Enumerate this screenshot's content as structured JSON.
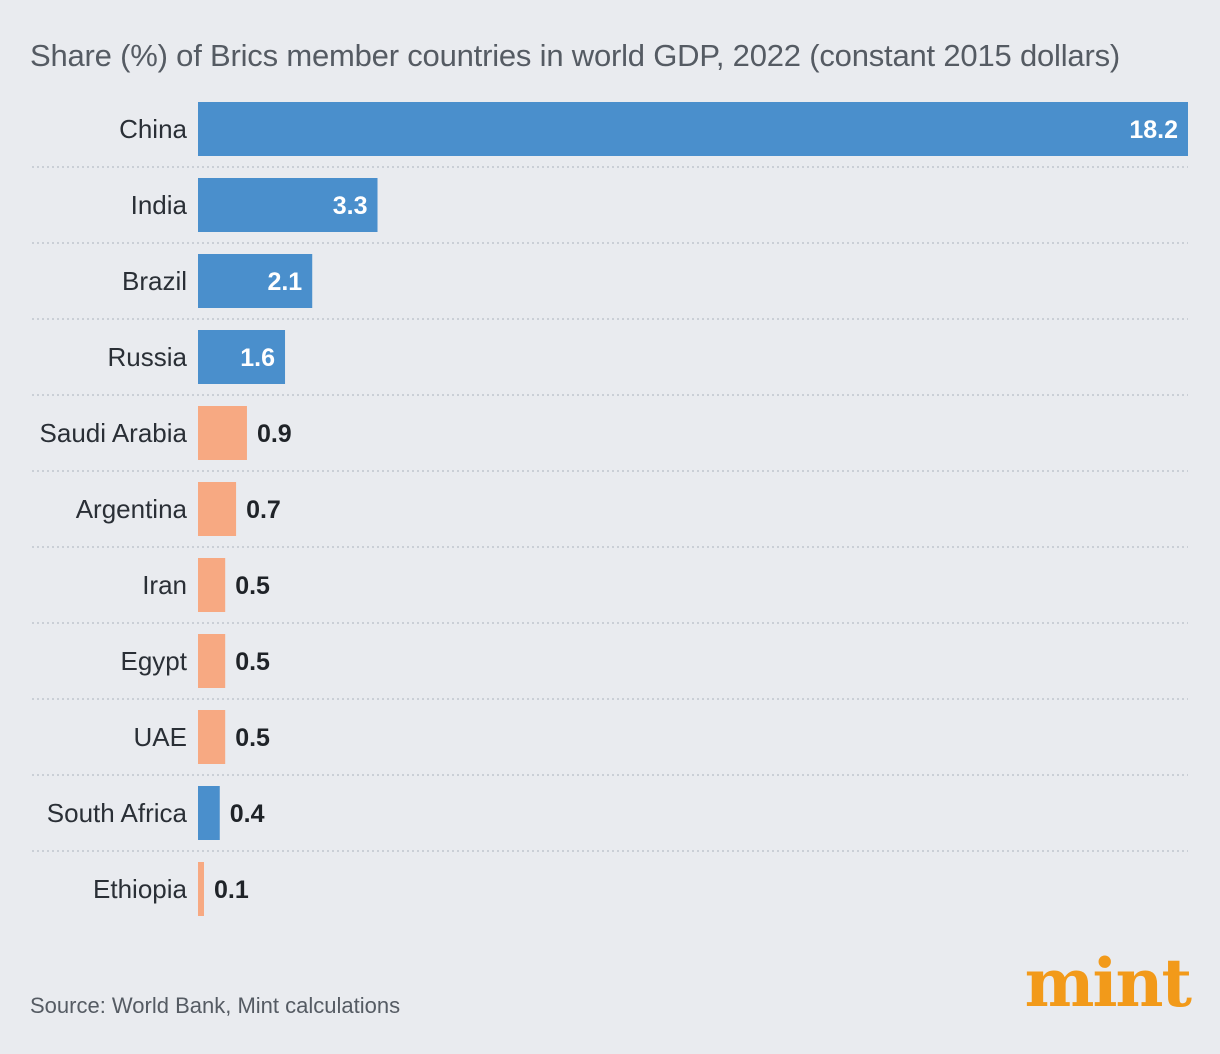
{
  "chart_data": {
    "type": "bar",
    "orientation": "horizontal",
    "title": "Share (%) of Brics member countries in world GDP, 2022 (constant 2015 dollars)",
    "categories": [
      "China",
      "India",
      "Brazil",
      "Russia",
      "Saudi Arabia",
      "Argentina",
      "Iran",
      "Egypt",
      "UAE",
      "South Africa",
      "Ethiopia"
    ],
    "values": [
      18.2,
      3.3,
      2.1,
      1.6,
      0.9,
      0.7,
      0.5,
      0.5,
      0.5,
      0.4,
      0.1
    ],
    "value_labels": [
      "18.2",
      "3.3",
      "2.1",
      "1.6",
      "0.9",
      "0.7",
      "0.5",
      "0.5",
      "0.5",
      "0.4",
      "0.1"
    ],
    "bar_groups": [
      "existing",
      "existing",
      "existing",
      "existing",
      "new",
      "new",
      "new",
      "new",
      "new",
      "existing",
      "new"
    ],
    "colors": {
      "existing": "#4a8fcc",
      "new": "#f7a982"
    },
    "xlim": [
      0,
      18.2
    ],
    "grid": false,
    "row_separators": "dotted"
  },
  "source": "Source: World Bank, Mint calculations",
  "logo_text": "mint"
}
